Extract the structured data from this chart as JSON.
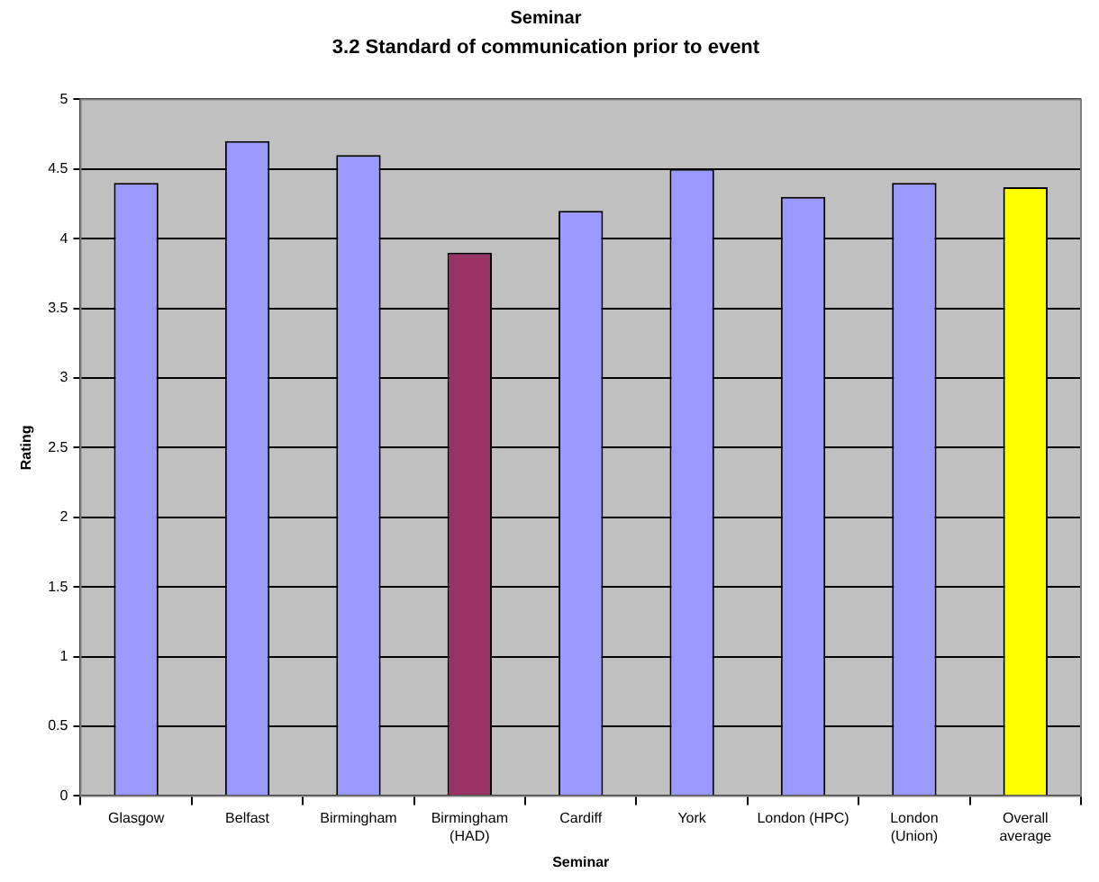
{
  "chart_data": {
    "type": "bar",
    "title": "Seminar",
    "subtitle": "3.2 Standard of communication prior to event",
    "xlabel": "Seminar",
    "ylabel": "Rating",
    "categories": [
      "Glasgow",
      "Belfast",
      "Birmingham",
      "Birmingham (HAD)",
      "Cardiff",
      "York",
      "London (HPC)",
      "London (Union)",
      "Overall average"
    ],
    "values": [
      4.4,
      4.7,
      4.6,
      3.9,
      4.2,
      4.5,
      4.3,
      4.4,
      4.37
    ],
    "colors": [
      "#9999ff",
      "#9999ff",
      "#9999ff",
      "#993366",
      "#9999ff",
      "#9999ff",
      "#9999ff",
      "#9999ff",
      "#ffff00"
    ],
    "ylim": [
      0,
      5
    ],
    "yticks": [
      0,
      0.5,
      1,
      1.5,
      2,
      2.5,
      3,
      3.5,
      4,
      4.5,
      5
    ],
    "grid": "y",
    "legend": false
  }
}
